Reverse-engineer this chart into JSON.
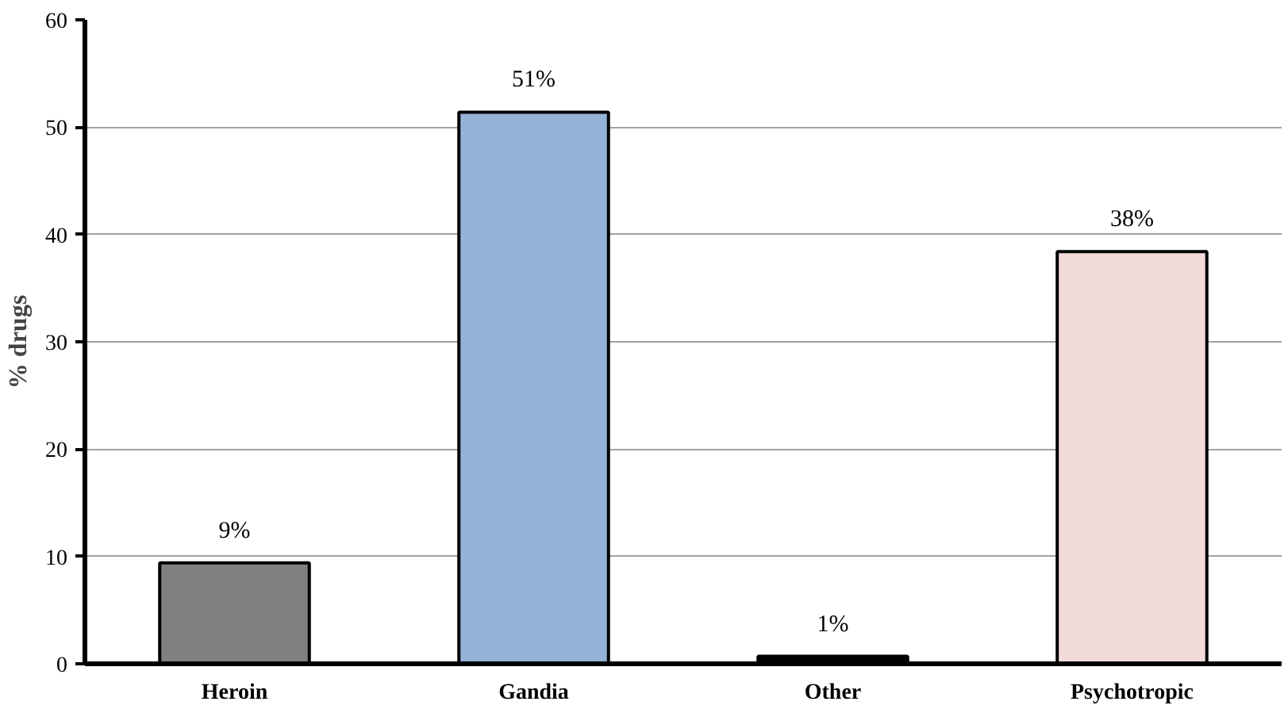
{
  "chart_data": {
    "type": "bar",
    "ylabel": "% drugs",
    "categories": [
      "Heroin",
      "Gandia",
      "Other",
      "Psychotropic"
    ],
    "values": [
      9.4,
      51.4,
      0.7,
      38.4
    ],
    "colors": [
      "#808080",
      "#95b3d7",
      "#000000",
      "#f2dcdb"
    ],
    "value_labels": [
      "9%",
      "51%",
      "1%",
      "38%"
    ],
    "ylim": [
      0,
      60
    ],
    "yticks": [
      0,
      10,
      20,
      30,
      40,
      50,
      60
    ],
    "grid": "y"
  }
}
